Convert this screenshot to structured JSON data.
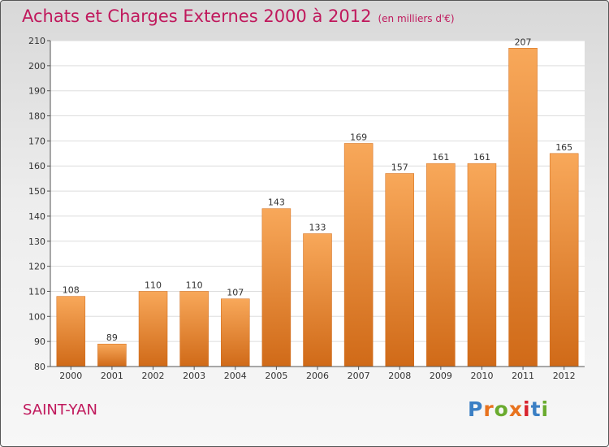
{
  "title": "Achats et Charges Externes 2000 à 2012",
  "subtitle": "(en milliers d'€)",
  "town": "SAINT-YAN",
  "logo": {
    "letters": [
      "P",
      "r",
      "o",
      "x",
      "i",
      "t",
      "i"
    ],
    "colors": [
      "#3b7fc4",
      "#e8731f",
      "#6aab2f",
      "#e8731f",
      "#d8242f",
      "#3b7fc4",
      "#6aab2f"
    ]
  },
  "colors": {
    "bar": "#f0913a",
    "bar_light": "#f8a85a",
    "bar_dark": "#d06a18",
    "title": "#c0185c"
  },
  "chart_data": {
    "type": "bar",
    "title": "Achats et Charges Externes 2000 à 2012",
    "categories": [
      "2000",
      "2001",
      "2002",
      "2003",
      "2004",
      "2005",
      "2006",
      "2007",
      "2008",
      "2009",
      "2010",
      "2011",
      "2012"
    ],
    "values": [
      108,
      89,
      110,
      110,
      107,
      143,
      133,
      169,
      157,
      161,
      161,
      207,
      165
    ],
    "ylim": [
      80,
      210
    ],
    "yticks": [
      80,
      90,
      100,
      110,
      120,
      130,
      140,
      150,
      160,
      170,
      180,
      190,
      200,
      210
    ],
    "grid": true,
    "xlabel": "",
    "ylabel": ""
  }
}
